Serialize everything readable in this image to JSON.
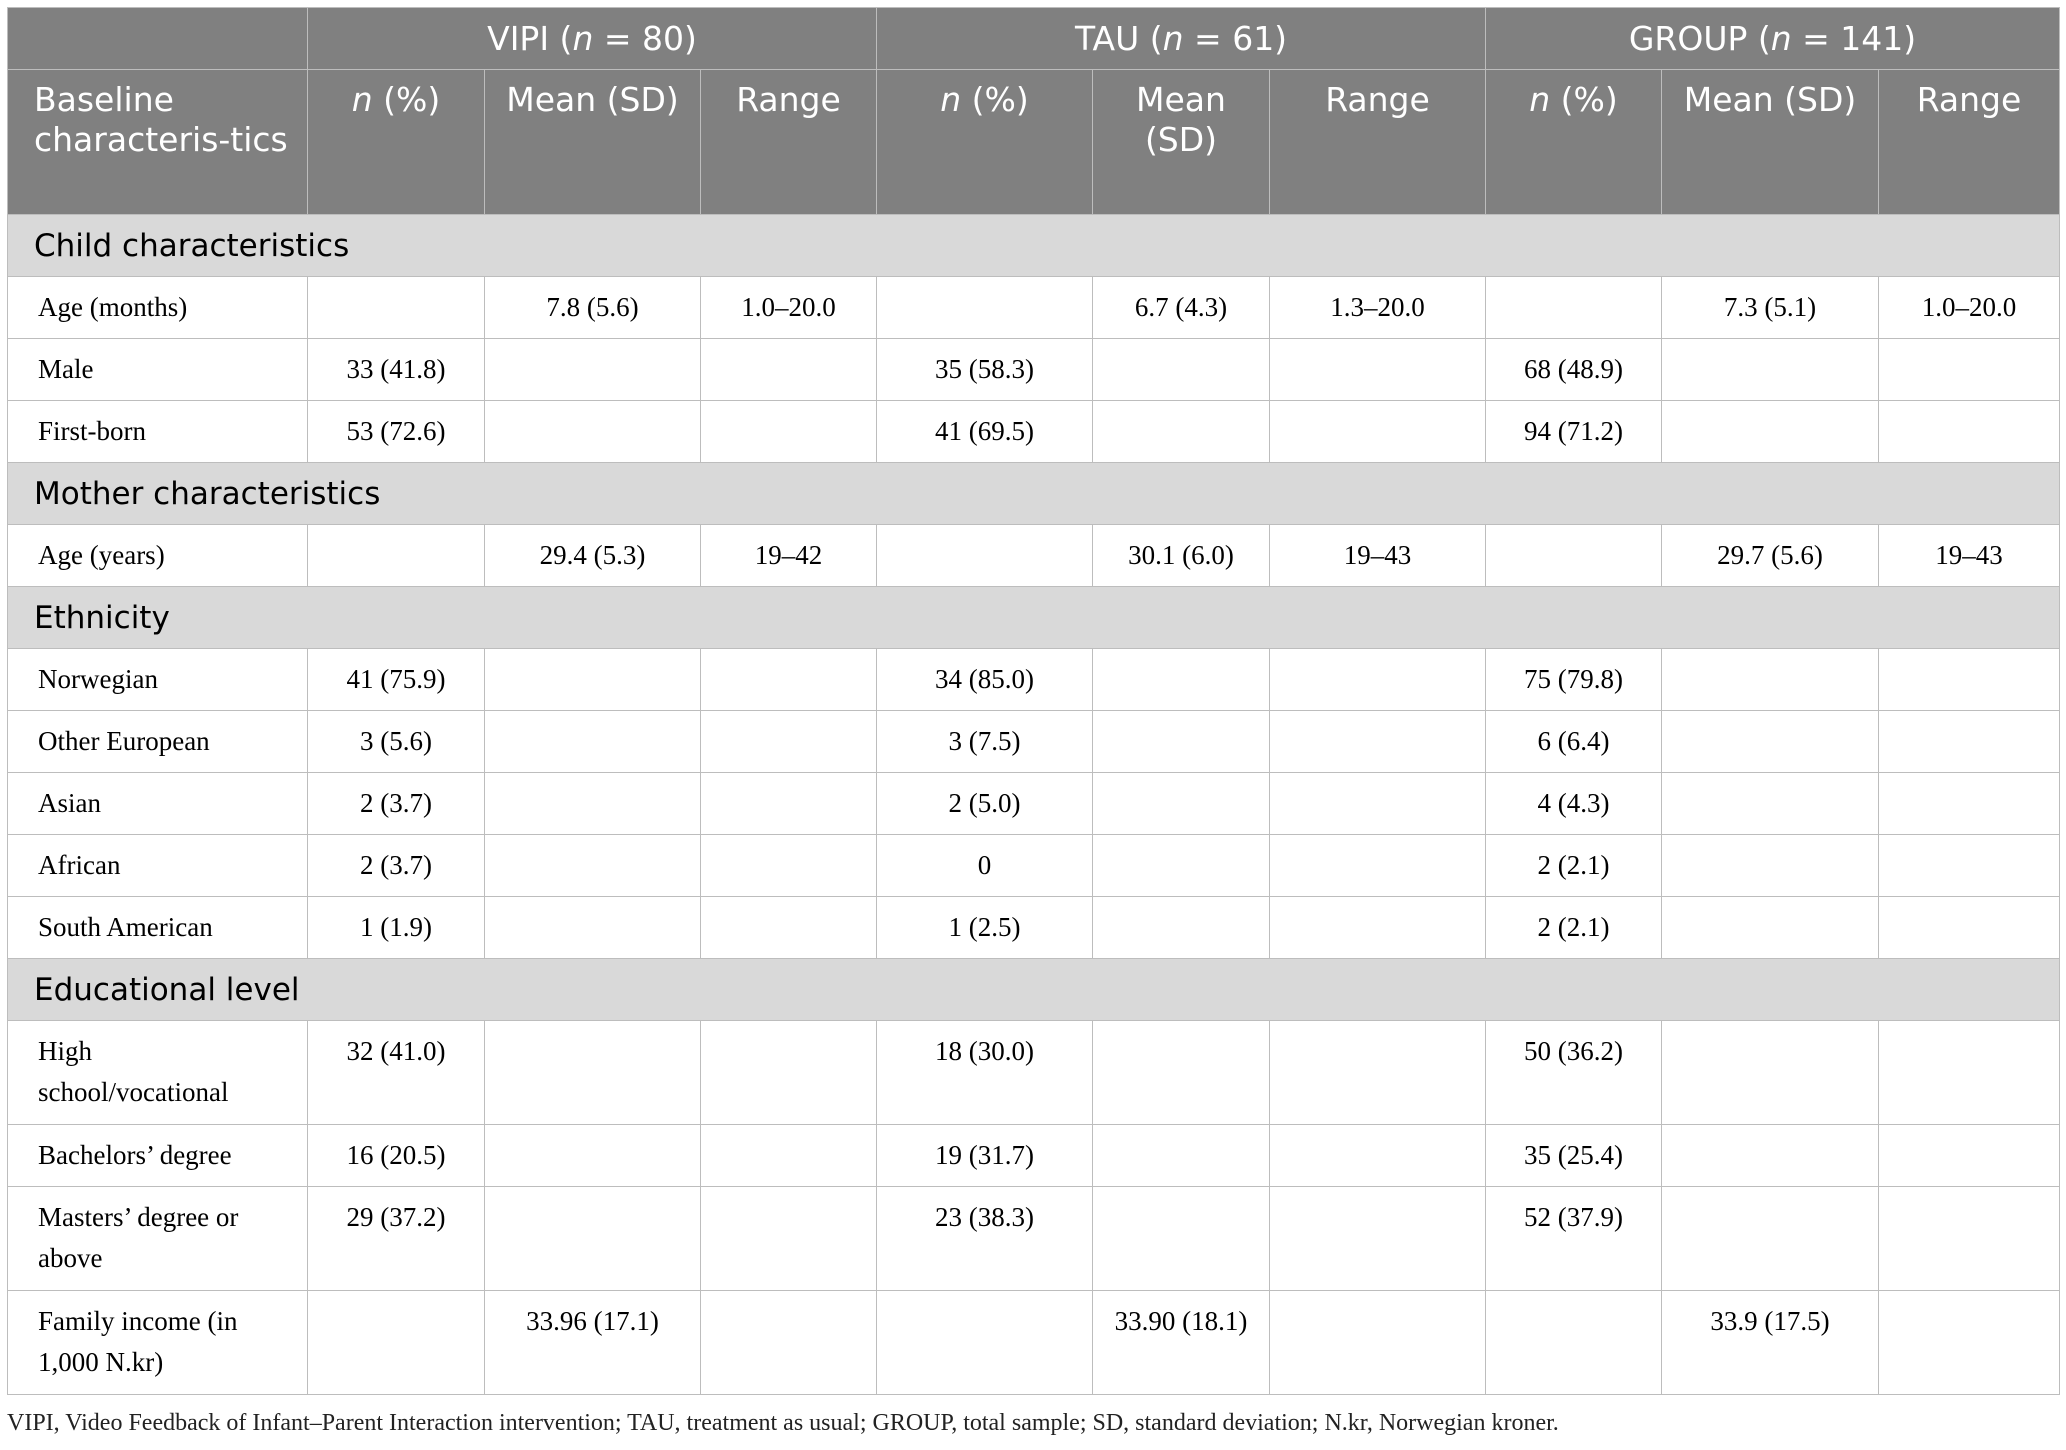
{
  "table": {
    "groups": [
      {
        "label": [
          "VIPI (",
          "n",
          " = 80)"
        ],
        "columns": [
          [
            "n",
            " (%)"
          ],
          "Mean (SD)",
          "Range"
        ]
      },
      {
        "label": [
          "TAU (",
          "n",
          " = 61)"
        ],
        "columns": [
          [
            "n",
            " (%)"
          ],
          "Mean (SD)",
          "Range"
        ]
      },
      {
        "label": [
          "GROUP (",
          "n",
          " = 141)"
        ],
        "columns": [
          [
            "n",
            " (%)"
          ],
          "Mean (SD)",
          "Range"
        ]
      }
    ],
    "row_header": "Baseline characteris-tics",
    "sections": [
      {
        "title": "Child characteristics",
        "rows": [
          {
            "label": "Age (months)",
            "cells": [
              null,
              "7.8 (5.6)",
              "1.0–20.0",
              null,
              "6.7 (4.3)",
              "1.3–20.0",
              null,
              "7.3 (5.1)",
              "1.0–20.0"
            ]
          },
          {
            "label": "Male",
            "cells": [
              "33 (41.8)",
              null,
              null,
              "35 (58.3)",
              null,
              null,
              "68 (48.9)",
              null,
              null
            ]
          },
          {
            "label": "First-born",
            "cells": [
              "53 (72.6)",
              null,
              null,
              "41 (69.5)",
              null,
              null,
              "94 (71.2)",
              null,
              null
            ]
          }
        ]
      },
      {
        "title": "Mother characteristics",
        "rows": [
          {
            "label": "Age (years)",
            "cells": [
              null,
              "29.4 (5.3)",
              "19–42",
              null,
              "30.1 (6.0)",
              "19–43",
              null,
              "29.7 (5.6)",
              "19–43"
            ]
          }
        ]
      },
      {
        "title": "Ethnicity",
        "rows": [
          {
            "label": "Norwegian",
            "cells": [
              "41 (75.9)",
              null,
              null,
              "34 (85.0)",
              null,
              null,
              "75 (79.8)",
              null,
              null
            ]
          },
          {
            "label": "Other European",
            "cells": [
              "3 (5.6)",
              null,
              null,
              "3 (7.5)",
              null,
              null,
              "6 (6.4)",
              null,
              null
            ]
          },
          {
            "label": "Asian",
            "cells": [
              "2 (3.7)",
              null,
              null,
              "2 (5.0)",
              null,
              null,
              "4 (4.3)",
              null,
              null
            ]
          },
          {
            "label": "African",
            "cells": [
              "2 (3.7)",
              null,
              null,
              "0",
              null,
              null,
              "2 (2.1)",
              null,
              null
            ]
          },
          {
            "label": "South American",
            "cells": [
              "1 (1.9)",
              null,
              null,
              "1 (2.5)",
              null,
              null,
              "2 (2.1)",
              null,
              null
            ]
          }
        ]
      },
      {
        "title": "Educational level",
        "rows": [
          {
            "label": "High school/vocational",
            "cells": [
              "32 (41.0)",
              null,
              null,
              "18 (30.0)",
              null,
              null,
              "50 (36.2)",
              null,
              null
            ]
          },
          {
            "label": "Bachelors’ degree",
            "cells": [
              "16 (20.5)",
              null,
              null,
              "19 (31.7)",
              null,
              null,
              "35 (25.4)",
              null,
              null
            ]
          },
          {
            "label": "Masters’ degree or above",
            "cells": [
              "29 (37.2)",
              null,
              null,
              "23 (38.3)",
              null,
              null,
              "52 (37.9)",
              null,
              null
            ]
          },
          {
            "label": "Family income (in 1,000 N.kr)",
            "cells": [
              null,
              "33.96 (17.1)",
              null,
              null,
              "33.90 (18.1)",
              null,
              null,
              "33.9 (17.5)",
              null
            ]
          }
        ]
      }
    ],
    "footnote": "VIPI, Video Feedback of Infant–Parent Interaction intervention; TAU, treatment as usual; GROUP, total sample; SD, standard deviation; N.kr, Norwegian kroner."
  }
}
